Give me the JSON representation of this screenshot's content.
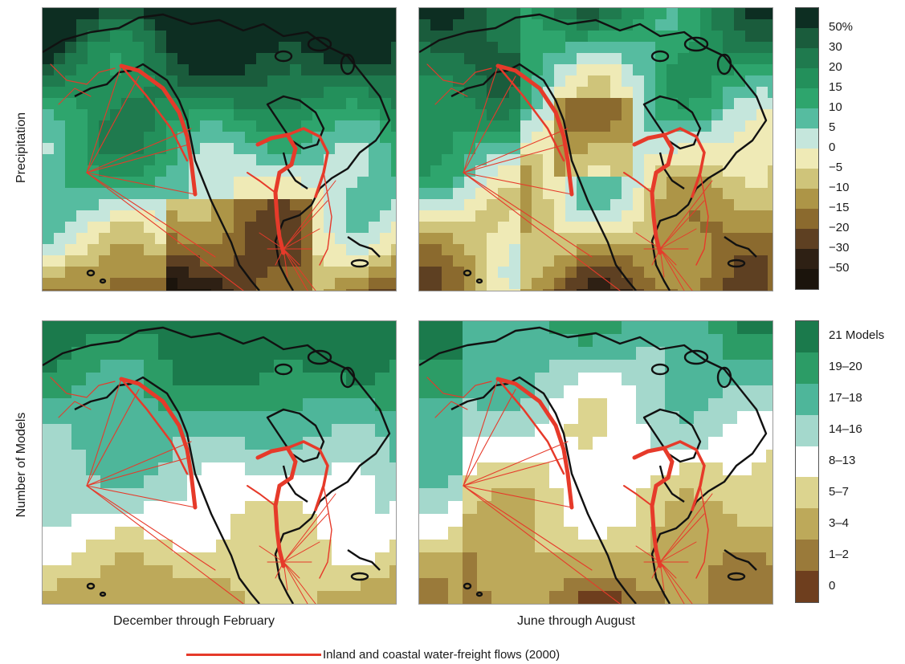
{
  "rows": {
    "top_label": "Precipitation",
    "bottom_label": "Number of Models"
  },
  "columns": {
    "left_caption": "December through February",
    "right_caption": "June through August"
  },
  "precip_legend": {
    "labels": [
      "50%",
      "30",
      "20",
      "15",
      "10",
      "5",
      "0",
      "−5",
      "−10",
      "−15",
      "−20",
      "−30",
      "−50"
    ],
    "colors": [
      "#0d2e22",
      "#1a5c3c",
      "#1f7a4e",
      "#23905b",
      "#2ea56d",
      "#56bca0",
      "#c5e6dc",
      "#efeab6",
      "#cfc47a",
      "#ad9547",
      "#8b6a2e",
      "#5e4022",
      "#2e2014",
      "#1b140c"
    ]
  },
  "models_legend": {
    "labels": [
      "21 Models",
      "19–20",
      "17–18",
      "14–16",
      "8–13",
      "5–7",
      "3–4",
      "1–2",
      "0"
    ],
    "colors": [
      "#1b7a4c",
      "#2c9c66",
      "#4eb69a",
      "#a4d8cc",
      "#ffffff",
      "#dcd48f",
      "#bda95a",
      "#9a7a3a",
      "#6e3e1e"
    ]
  },
  "footer": {
    "label": "Inland and coastal water-freight flows (2000)",
    "line_color": "#e63a2a"
  }
}
